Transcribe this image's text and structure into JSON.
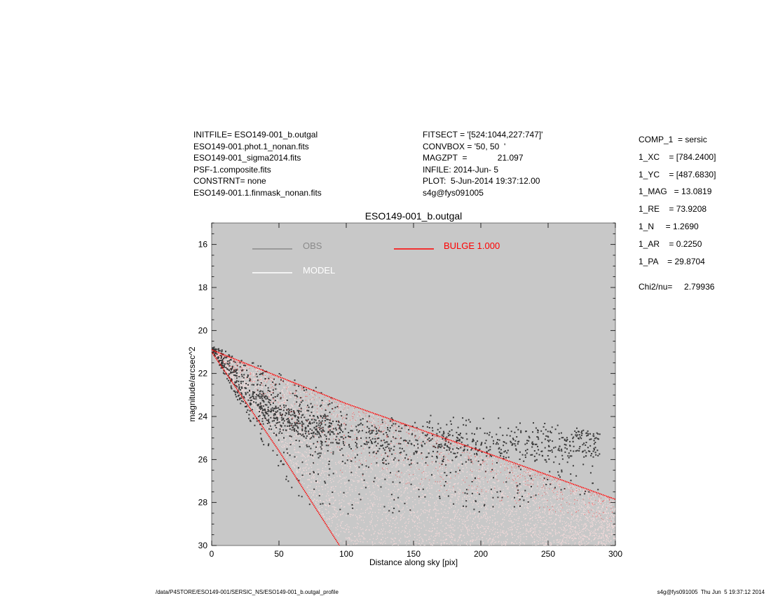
{
  "header_left": {
    "lines": [
      "INITFILE= ESO149-001_b.outgal",
      "ESO149-001.phot.1_nonan.fits",
      "ESO149-001_sigma2014.fits",
      "PSF-1.composite.fits",
      "CONSTRNT= none",
      "ESO149-001.1.finmask_nonan.fits"
    ]
  },
  "header_mid": {
    "lines": [
      "FITSECT = '[524:1044,227:747]'",
      "CONVBOX = '50, 50  '",
      "MAGZPT  =             21.097",
      "INFILE: 2014-Jun- 5",
      "PLOT:  5-Jun-2014 19:37:12.00",
      "s4g@fys091005"
    ]
  },
  "header_right": {
    "params": [
      "COMP_1  = sersic",
      "1_XC    = [784.2400]",
      "1_YC    = [487.6830]",
      "1_MAG   = 13.0819",
      "1_RE    = 73.9208",
      "1_N     = 1.2690",
      "1_AR    = 0.2250",
      "1_PA    = 29.8704"
    ],
    "chi": "Chi2/nu=     2.79936"
  },
  "footer": {
    "left": "/data/P4STORE/ESO149-001/SERSIC_NS/ESO149-001_b.outgal_profile",
    "right": "s4g@fys091005  Thu Jun  5 19:37:12 2014"
  },
  "colors": {
    "panel_bg": "#c8c8c8",
    "obs": "#3a3a3a",
    "obs_legend": "#8a8a8a",
    "model": "#ffffff",
    "bulge": "#ff0000"
  },
  "chart_data": {
    "type": "scatter",
    "title": "ESO149-001_b.outgal",
    "xlabel": "Distance along sky [pix]",
    "ylabel": "magnitude/arcsec^2",
    "xlim": [
      0,
      300
    ],
    "ylim": [
      30,
      15
    ],
    "y_inverted": true,
    "grid": false,
    "legend_position": "top",
    "xticks": [
      0,
      50,
      100,
      150,
      200,
      250,
      300
    ],
    "yticks": [
      16,
      18,
      20,
      22,
      24,
      26,
      28,
      30
    ],
    "legend": [
      {
        "label": "OBS",
        "color": "#8a8a8a"
      },
      {
        "label": "MODEL",
        "color": "#ffffff"
      },
      {
        "label": "BULGE  1.000",
        "color": "#ff0000"
      }
    ],
    "series": [
      {
        "name": "OBS",
        "description_points": [
          [
            0,
            20.8
          ],
          [
            10,
            21.5
          ],
          [
            20,
            22.5
          ],
          [
            40,
            23.6
          ],
          [
            60,
            24.2
          ],
          [
            80,
            24.6
          ],
          [
            100,
            24.9
          ],
          [
            130,
            25.1
          ],
          [
            160,
            25.2
          ],
          [
            200,
            25.3
          ],
          [
            230,
            25.2
          ],
          [
            260,
            25.3
          ],
          [
            285,
            25.2
          ]
        ],
        "envelope_top": [
          [
            0,
            20.7
          ],
          [
            50,
            21.9
          ],
          [
            100,
            23.2
          ],
          [
            150,
            23.8
          ],
          [
            200,
            23.8
          ],
          [
            250,
            24.3
          ],
          [
            285,
            24.6
          ]
        ],
        "envelope_bottom": [
          [
            0,
            21.0
          ],
          [
            30,
            24.5
          ],
          [
            60,
            27.5
          ],
          [
            80,
            28.5
          ],
          [
            120,
            28.5
          ],
          [
            200,
            28.4
          ],
          [
            250,
            28.0
          ],
          [
            285,
            27.5
          ]
        ]
      },
      {
        "name": "MODEL",
        "envelope_top": [
          [
            0,
            20.9
          ],
          [
            100,
            23.3
          ],
          [
            200,
            25.5
          ],
          [
            300,
            27.8
          ]
        ],
        "envelope_bottom": [
          [
            0,
            21.0
          ],
          [
            50,
            25.3
          ],
          [
            95,
            30
          ],
          [
            300,
            30
          ]
        ]
      },
      {
        "name": "BULGE  1.000",
        "upper_edge": [
          [
            0,
            20.9
          ],
          [
            100,
            23.4
          ],
          [
            200,
            25.6
          ],
          [
            300,
            27.85
          ]
        ],
        "lower_edge": [
          [
            0,
            21.0
          ],
          [
            50,
            25.6
          ],
          [
            95,
            30
          ]
        ]
      }
    ]
  }
}
